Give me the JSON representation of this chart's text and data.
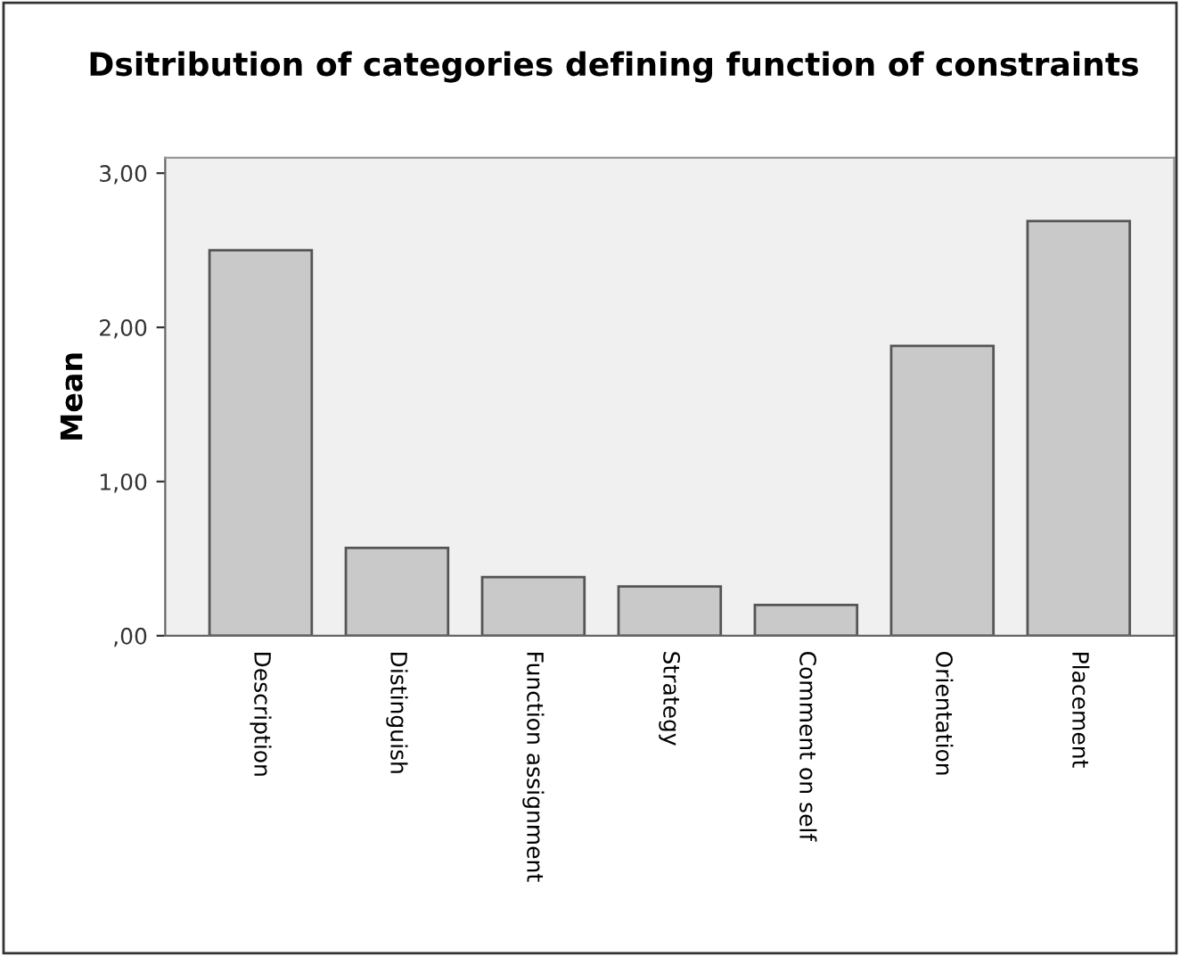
{
  "chart_data": {
    "type": "bar",
    "title": "Dsitribution of categories defining function of constraints",
    "ylabel": "Mean",
    "categories": [
      "Description",
      "Distinguish",
      "Function assignment",
      "Strategy",
      "Comment on self",
      "Orientation",
      "Placement"
    ],
    "values": [
      2.5,
      0.57,
      0.38,
      0.32,
      0.2,
      1.88,
      2.69
    ],
    "color": "#c8c9c8",
    "ylim": [
      0,
      3.1
    ],
    "yticks": [
      {
        "value": 0,
        "label": ",00"
      },
      {
        "value": 1,
        "label": "1,00"
      },
      {
        "value": 2,
        "label": "2,00"
      },
      {
        "value": 3,
        "label": "3,00"
      }
    ],
    "grid": false,
    "legend": false
  }
}
